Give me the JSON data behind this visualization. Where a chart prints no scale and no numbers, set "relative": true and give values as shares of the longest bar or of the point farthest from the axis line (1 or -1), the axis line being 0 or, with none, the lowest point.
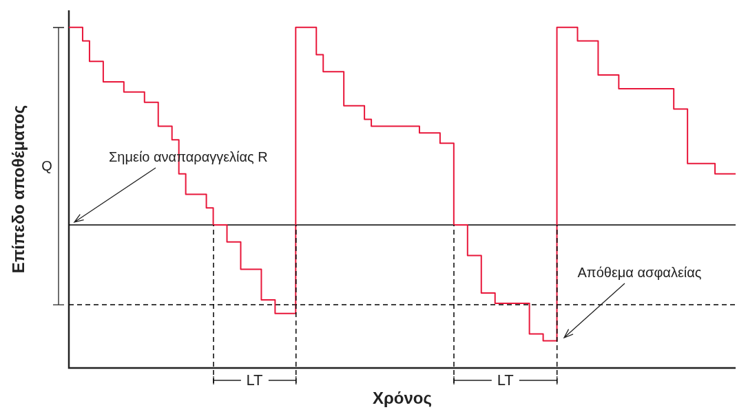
{
  "chart_data": {
    "type": "step",
    "relative": true,
    "xlabel": "Χρόνος",
    "ylabel": "Επίπεδο αποθέματος",
    "categories": [
      null,
      null,
      null,
      null,
      null,
      null,
      null,
      null,
      null,
      null,
      null,
      null,
      null,
      null,
      null,
      null,
      null,
      null,
      null,
      null,
      null,
      null,
      null,
      null,
      null,
      null,
      null,
      null,
      null,
      null,
      null,
      null,
      null,
      null,
      null,
      null,
      null,
      null,
      null,
      null,
      null,
      null,
      null,
      null,
      null,
      null,
      null,
      null,
      null,
      null,
      null,
      null,
      null,
      null,
      null,
      null,
      null,
      null,
      null,
      null,
      null,
      null,
      null,
      null,
      null,
      null,
      null,
      null,
      null,
      null,
      null,
      null,
      null,
      null,
      null,
      null,
      null,
      null,
      null,
      null,
      null,
      null,
      null,
      null,
      null,
      null,
      null,
      null,
      null,
      null,
      null,
      null,
      null,
      null,
      null,
      null,
      null,
      null
    ],
    "series": [
      {
        "color": "#e8173a",
        "values": [
          1.0,
          1.0,
          0.96,
          0.9,
          0.9,
          0.84,
          0.84,
          0.84,
          0.81,
          0.81,
          0.81,
          0.78,
          0.78,
          0.71,
          0.71,
          0.67,
          0.57,
          0.51,
          0.51,
          0.51,
          0.47,
          0.42,
          0.42,
          0.37,
          0.37,
          0.29,
          0.29,
          0.29,
          0.2,
          0.2,
          0.16,
          0.16,
          0.16,
          1.0,
          1.0,
          1.0,
          0.92,
          0.87,
          0.87,
          0.87,
          0.77,
          0.77,
          0.77,
          0.73,
          0.71,
          0.71,
          0.71,
          0.71,
          0.71,
          0.71,
          0.71,
          0.69,
          0.69,
          0.69,
          0.66,
          0.66,
          0.42,
          0.42,
          0.33,
          0.33,
          0.22,
          0.22,
          0.19,
          0.19,
          0.19,
          0.19,
          0.19,
          0.1,
          0.1,
          0.08,
          0.08,
          1.0,
          1.0,
          1.0,
          0.96,
          0.96,
          0.96,
          0.86,
          0.86,
          0.86,
          0.82,
          0.82,
          0.82,
          0.82,
          0.82,
          0.82,
          0.82,
          0.82,
          0.76,
          0.76,
          0.6,
          0.6,
          0.6,
          0.6,
          0.57,
          0.57,
          0.57,
          0.57
        ]
      }
    ],
    "ref_lines": [
      {
        "axis": "y",
        "value": 0.42,
        "label": null,
        "color": "#000000",
        "line_style": "solid"
      },
      {
        "axis": "y",
        "value": 0.186,
        "label": null,
        "color": "#000000",
        "line_style": "dashed"
      }
    ],
    "annotations": [
      "Q",
      "Σημείο αναπαραγγελίας R",
      "Απόθεμα ασφαλείας",
      "LT",
      "LT"
    ],
    "grid": false,
    "legend": false,
    "marker": "none",
    "line_style": "solid"
  }
}
